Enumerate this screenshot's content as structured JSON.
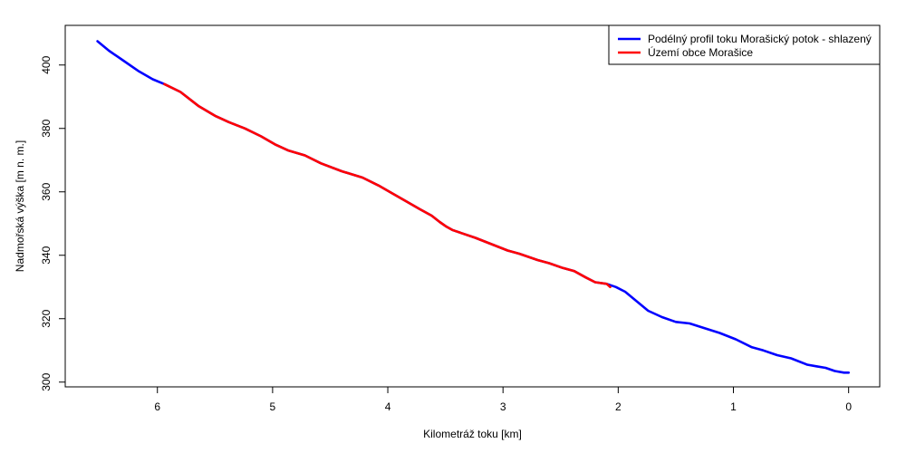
{
  "chart_data": {
    "type": "line",
    "title": "",
    "xlabel": "Kilometráž toku [km]",
    "ylabel": "Nadmořská výška [m n. m.]",
    "x_reversed": true,
    "xlim": [
      6.8,
      -0.27
    ],
    "ylim": [
      298.5,
      412.5
    ],
    "x_ticks": [
      {
        "value": 6,
        "label": "6"
      },
      {
        "value": 5,
        "label": "5"
      },
      {
        "value": 4,
        "label": "4"
      },
      {
        "value": 3,
        "label": "3"
      },
      {
        "value": 2,
        "label": "2"
      },
      {
        "value": 1,
        "label": "1"
      },
      {
        "value": 0,
        "label": "0"
      }
    ],
    "y_ticks": [
      {
        "value": 300,
        "label": "300"
      },
      {
        "value": 320,
        "label": "320"
      },
      {
        "value": 340,
        "label": "340"
      },
      {
        "value": 360,
        "label": "360"
      },
      {
        "value": 380,
        "label": "380"
      },
      {
        "value": 400,
        "label": "400"
      }
    ],
    "legend_position": "top-right",
    "series": [
      {
        "name": "Podélný profil toku Morašický potok - shlazený",
        "color": "#0000ff",
        "x": [
          6.52,
          6.42,
          6.3,
          6.16,
          6.04,
          5.94,
          5.8,
          5.64,
          5.5,
          5.38,
          5.24,
          5.1,
          4.98,
          4.86,
          4.72,
          4.58,
          4.4,
          4.22,
          4.08,
          3.96,
          3.84,
          3.72,
          3.62,
          3.55,
          3.49,
          3.44,
          3.36,
          3.24,
          3.1,
          2.96,
          2.86,
          2.78,
          2.7,
          2.6,
          2.48,
          2.38,
          2.28,
          2.2,
          2.1,
          2.02,
          1.94,
          1.84,
          1.74,
          1.62,
          1.5,
          1.38,
          1.25,
          1.12,
          0.98,
          0.84,
          0.74,
          0.62,
          0.5,
          0.36,
          0.28,
          0.2,
          0.12,
          0.04,
          0.0
        ],
        "y": [
          407.5,
          404.5,
          401.5,
          398.0,
          395.5,
          394.0,
          391.5,
          387.0,
          384.0,
          382.0,
          380.0,
          377.5,
          375.0,
          373.0,
          371.5,
          369.0,
          366.5,
          364.5,
          362.0,
          359.5,
          357.0,
          354.5,
          352.5,
          350.5,
          349.0,
          348.0,
          347.0,
          345.5,
          343.5,
          341.5,
          340.5,
          339.5,
          338.5,
          337.5,
          336.0,
          335.0,
          333.0,
          331.5,
          331.0,
          330.0,
          328.5,
          325.5,
          322.5,
          320.5,
          319.0,
          318.5,
          317.0,
          315.5,
          313.5,
          311.0,
          310.0,
          308.5,
          307.5,
          305.5,
          305.0,
          304.5,
          303.5,
          303.0,
          303.0
        ]
      },
      {
        "name": "Území obce Morašice",
        "color": "#ff0000",
        "x": [
          5.94,
          5.8,
          5.64,
          5.5,
          5.38,
          5.24,
          5.1,
          4.98,
          4.86,
          4.72,
          4.58,
          4.4,
          4.22,
          4.08,
          3.96,
          3.84,
          3.72,
          3.62,
          3.55,
          3.49,
          3.44,
          3.36,
          3.24,
          3.1,
          2.96,
          2.86,
          2.78,
          2.7,
          2.6,
          2.48,
          2.38,
          2.28,
          2.2,
          2.1,
          2.07
        ],
        "y": [
          394.0,
          391.5,
          387.0,
          384.0,
          382.0,
          380.0,
          377.5,
          375.0,
          373.0,
          371.5,
          369.0,
          366.5,
          364.5,
          362.0,
          359.5,
          357.0,
          354.5,
          352.5,
          350.5,
          349.0,
          348.0,
          347.0,
          345.5,
          343.5,
          341.5,
          340.5,
          339.5,
          338.5,
          337.5,
          336.0,
          335.0,
          333.0,
          331.5,
          331.0,
          330.0
        ]
      }
    ]
  }
}
